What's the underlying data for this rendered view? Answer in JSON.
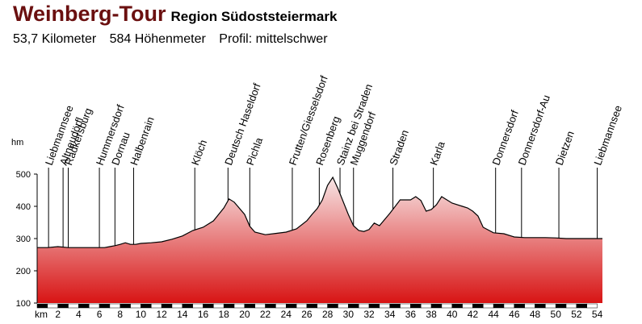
{
  "header": {
    "title": "Weinberg-Tour",
    "region": "Region Südoststeiermark",
    "distance": "53,7 Kilometer",
    "elevation_gain": "584 Höhenmeter",
    "profile": "Profil: mittelschwer"
  },
  "colors": {
    "title": "#6b1010",
    "fill_top": "#f7e6e6",
    "fill_bottom": "#d81414",
    "line": "#000000"
  },
  "chart_data": {
    "type": "area",
    "ylabel": "hm",
    "xlabel": "km",
    "ylim": [
      100,
      500
    ],
    "xlim": [
      0,
      54.5
    ],
    "yticks": [
      100,
      200,
      300,
      400,
      500
    ],
    "xticks": [
      2,
      4,
      6,
      8,
      10,
      12,
      14,
      16,
      18,
      20,
      22,
      24,
      26,
      28,
      30,
      32,
      34,
      36,
      38,
      40,
      42,
      44,
      46,
      48,
      50,
      52,
      54
    ],
    "x": [
      0,
      1,
      2,
      3,
      4,
      5,
      6,
      6.5,
      7,
      7.5,
      8,
      8.5,
      9,
      9.5,
      10,
      11,
      12,
      13,
      14,
      15,
      16,
      17,
      18,
      18.5,
      19,
      20,
      20.5,
      21,
      22,
      23,
      24,
      25,
      26,
      26.5,
      27,
      27.5,
      28,
      28.5,
      29,
      30,
      30.5,
      31,
      31.5,
      32,
      32.5,
      33,
      34,
      35,
      36,
      36.5,
      37,
      37.5,
      38,
      38.5,
      39,
      40,
      41,
      41.5,
      42,
      42.5,
      43,
      44,
      45,
      46,
      47,
      48,
      49,
      50,
      51,
      52,
      53,
      54,
      54.5
    ],
    "y": [
      272,
      272,
      275,
      272,
      272,
      272,
      272,
      272,
      275,
      278,
      282,
      287,
      282,
      282,
      285,
      287,
      290,
      298,
      308,
      325,
      335,
      355,
      395,
      423,
      413,
      375,
      338,
      320,
      312,
      316,
      320,
      330,
      355,
      375,
      393,
      420,
      465,
      490,
      455,
      375,
      340,
      325,
      322,
      328,
      348,
      340,
      378,
      420,
      420,
      430,
      418,
      385,
      390,
      405,
      430,
      410,
      400,
      395,
      385,
      370,
      335,
      318,
      315,
      305,
      303,
      303,
      303,
      302,
      300,
      300,
      300,
      300,
      300
    ],
    "waypoints": [
      {
        "km": 1.1,
        "name": "Liebmannsee"
      },
      {
        "km": 2.5,
        "name": "Altneudörfl"
      },
      {
        "km": 3.0,
        "name": "Radkersburg"
      },
      {
        "km": 6.0,
        "name": "Hummersdorf"
      },
      {
        "km": 7.5,
        "name": "Dornau"
      },
      {
        "km": 9.3,
        "name": "Halbenrain"
      },
      {
        "km": 15.2,
        "name": "Klöch"
      },
      {
        "km": 18.4,
        "name": "Deutsch Haseldorf"
      },
      {
        "km": 20.5,
        "name": "Pichla"
      },
      {
        "km": 24.6,
        "name": "Frutten/Giesselsdorf"
      },
      {
        "km": 27.2,
        "name": "Rosenberg"
      },
      {
        "km": 29.2,
        "name": "Stainz bei Straden"
      },
      {
        "km": 30.5,
        "name": "Muggendorf"
      },
      {
        "km": 34.3,
        "name": "Straden"
      },
      {
        "km": 38.2,
        "name": "Karla"
      },
      {
        "km": 44.2,
        "name": "Donnersdorf"
      },
      {
        "km": 46.7,
        "name": "Donnersdorf-Au"
      },
      {
        "km": 50.3,
        "name": "Dietzen"
      },
      {
        "km": 54.0,
        "name": "Liebmannsee"
      }
    ]
  }
}
